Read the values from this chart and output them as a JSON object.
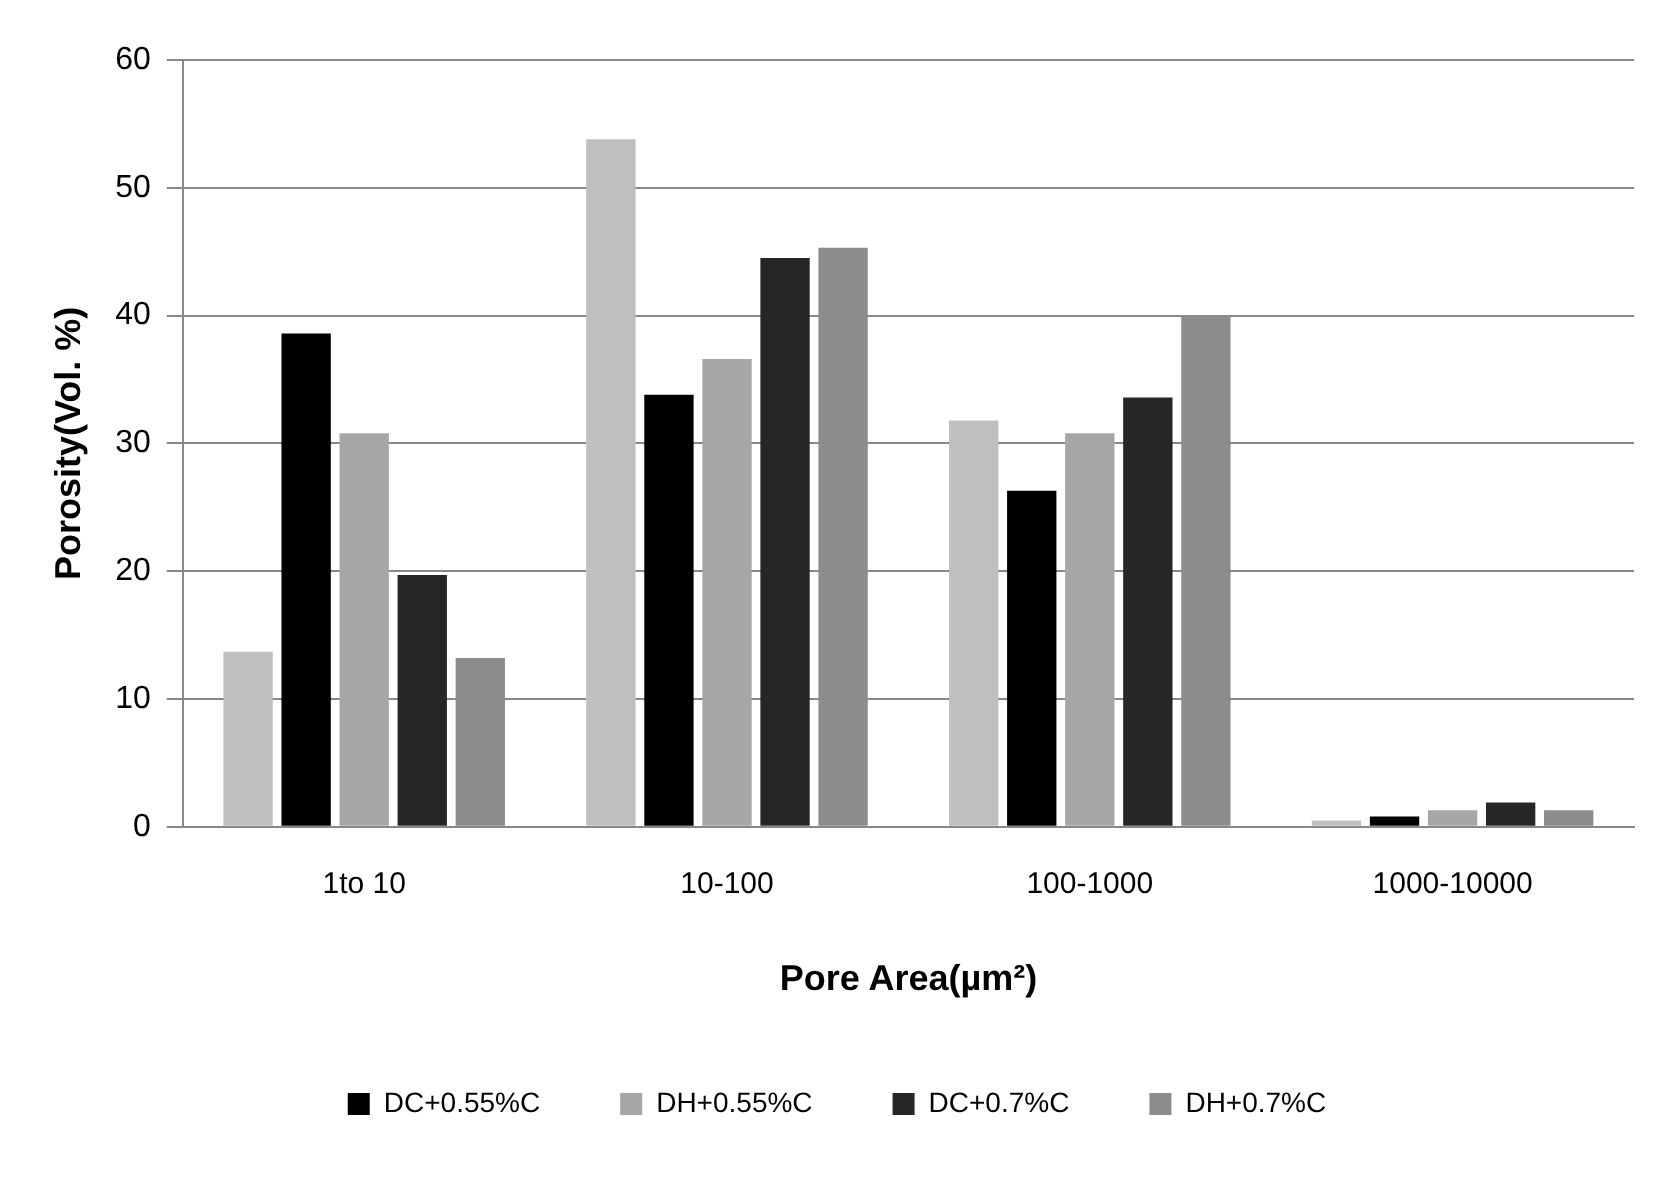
{
  "chart_data": {
    "type": "bar",
    "xlabel": "Pore Area(µm²)",
    "ylabel": "Porosity(Vol. %)",
    "categories": [
      "1to 10",
      "10-100",
      "100-1000",
      "1000-10000"
    ],
    "series": [
      {
        "color": "#bfbfbf",
        "values": [
          13.7,
          53.8,
          31.8,
          0.5
        ]
      },
      {
        "name": "DC+0.55%C",
        "color": "#000000",
        "values": [
          38.6,
          33.8,
          26.3,
          0.8
        ]
      },
      {
        "name": "DH+0.55%C",
        "color": "#a6a6a6",
        "values": [
          30.8,
          36.6,
          30.8,
          1.3
        ]
      },
      {
        "name": "DC+0.7%C",
        "color": "#262626",
        "values": [
          19.7,
          44.5,
          33.6,
          1.9
        ]
      },
      {
        "name": "DH+0.7%C",
        "color": "#8c8c8c",
        "values": [
          13.2,
          45.3,
          40,
          1.3
        ]
      }
    ],
    "ylim": [
      0,
      60
    ],
    "yticks": [
      0,
      10,
      20,
      30,
      40,
      50,
      60
    ],
    "grid": "y",
    "legend": "bottom"
  }
}
